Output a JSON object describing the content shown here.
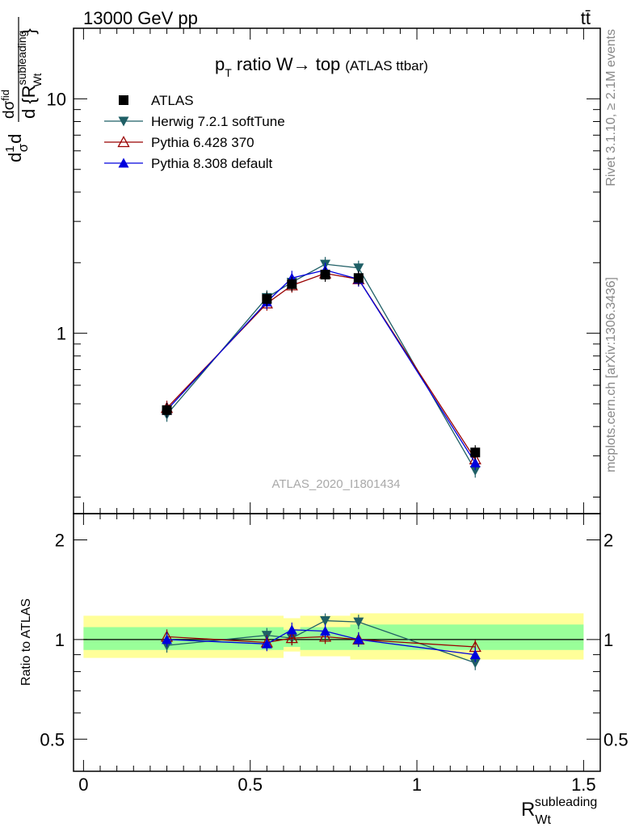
{
  "header": {
    "left": "13000 GeV pp",
    "right": "tt̄"
  },
  "side_text": {
    "rivet": "Rivet 3.1.10, ≥ 2.1M events",
    "mcplots": "mcplots.cern.ch [arXiv:1306.3436]"
  },
  "watermark": "ATLAS_2020_I1801434",
  "chart_data": [
    {
      "type": "line",
      "title": "p_T ratio W→ top (ATLAS ttbar)",
      "title_main": "p",
      "title_sub": "T",
      "title_rest": " ratio W→ top",
      "title_small": "(ATLAS ttbar)",
      "ylabel": "1/σ dσ/d{R_Wt^subleading}",
      "yscale": "log",
      "xlim": [
        -0.03,
        1.55
      ],
      "ylim": [
        0.17,
        20
      ],
      "y_ticks": [
        1,
        10
      ],
      "y_tick_labels": [
        "1",
        "10"
      ],
      "legend_position": "top-left",
      "legend": [
        "ATLAS",
        "Herwig 7.2.1 softTune",
        "Pythia 6.428 370",
        "Pythia 8.308 default"
      ],
      "x": [
        0.25,
        0.55,
        0.625,
        0.725,
        0.825,
        1.175
      ],
      "series": [
        {
          "name": "ATLAS",
          "color": "#000000",
          "marker": "square",
          "values": [
            0.47,
            1.4,
            1.62,
            1.78,
            1.72,
            0.31
          ]
        },
        {
          "name": "Herwig 7.2.1 softTune",
          "color": "#1f5f66",
          "marker": "triangle-down",
          "values": [
            0.45,
            1.42,
            1.65,
            1.97,
            1.9,
            0.26
          ]
        },
        {
          "name": "Pythia 6.428 370",
          "color": "#990000",
          "marker": "triangle-up-open",
          "values": [
            0.48,
            1.34,
            1.6,
            1.8,
            1.7,
            0.29
          ]
        },
        {
          "name": "Pythia 8.308 default",
          "color": "#0000dd",
          "marker": "triangle-up",
          "values": [
            0.47,
            1.36,
            1.72,
            1.86,
            1.7,
            0.28
          ]
        }
      ]
    },
    {
      "type": "line",
      "ylabel": "Ratio to ATLAS",
      "xlabel": "R_Wt^subleading",
      "xlabel_main": "R",
      "xlabel_sub": "Wt",
      "xlabel_sup": "subleading",
      "yscale": "log",
      "xlim": [
        -0.03,
        1.55
      ],
      "ylim": [
        0.4,
        2.4
      ],
      "y_ticks": [
        0.5,
        1,
        2
      ],
      "y_tick_labels": [
        "0.5",
        "1",
        "2"
      ],
      "x_ticks": [
        0,
        0.5,
        1,
        1.5
      ],
      "x_tick_labels": [
        "0",
        "0.5",
        "1",
        "1.5"
      ],
      "bands": [
        {
          "x0": 0.0,
          "x1": 0.6,
          "yellow": [
            0.88,
            1.18
          ],
          "green": [
            0.93,
            1.09
          ]
        },
        {
          "x0": 0.6,
          "x1": 0.65,
          "yellow": [
            0.92,
            1.16
          ],
          "green": [
            0.95,
            1.07
          ]
        },
        {
          "x0": 0.65,
          "x1": 0.8,
          "yellow": [
            0.89,
            1.18
          ],
          "green": [
            0.93,
            1.09
          ]
        },
        {
          "x0": 0.8,
          "x1": 1.5,
          "yellow": [
            0.87,
            1.2
          ],
          "green": [
            0.93,
            1.11
          ]
        }
      ],
      "x": [
        0.25,
        0.55,
        0.625,
        0.725,
        0.825,
        1.175
      ],
      "series": [
        {
          "name": "Herwig 7.2.1 softTune",
          "color": "#1f5f66",
          "marker": "triangle-down",
          "values": [
            0.96,
            1.03,
            1.01,
            1.14,
            1.13,
            0.85
          ]
        },
        {
          "name": "Pythia 6.428 370",
          "color": "#990000",
          "marker": "triangle-up-open",
          "values": [
            1.02,
            0.98,
            1.01,
            1.02,
            1.0,
            0.95
          ]
        },
        {
          "name": "Pythia 8.308 default",
          "color": "#0000dd",
          "marker": "triangle-up",
          "values": [
            1.0,
            0.97,
            1.07,
            1.06,
            1.0,
            0.9
          ]
        }
      ]
    }
  ]
}
